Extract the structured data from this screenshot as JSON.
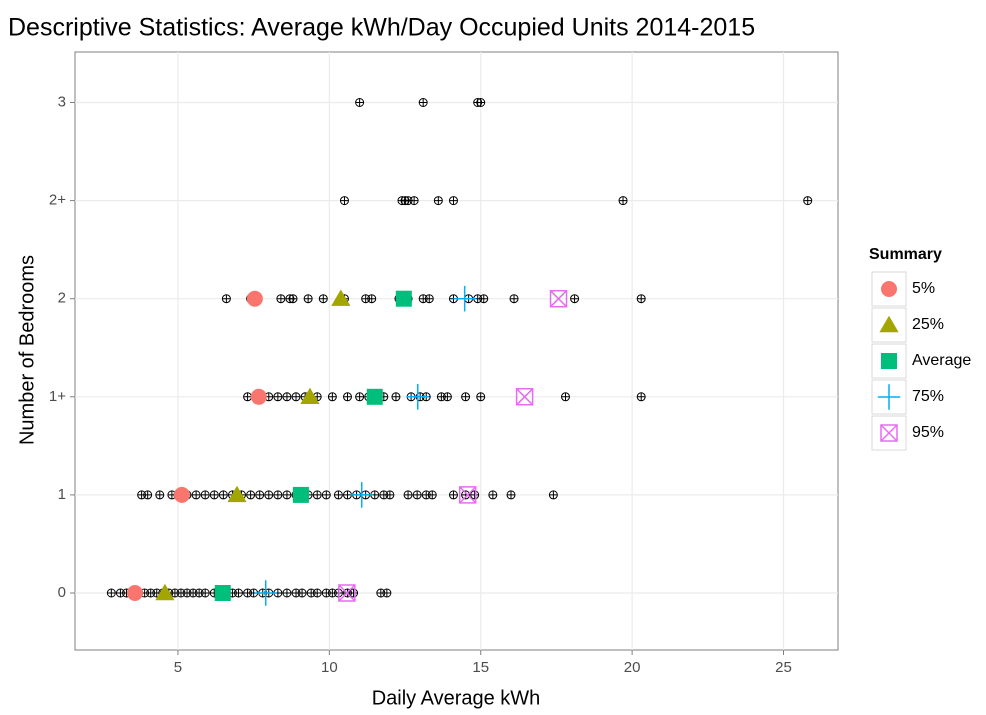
{
  "chart_data": {
    "type": "scatter",
    "title": "Descriptive Statistics: Average kWh/Day Occupied Units 2014-2015",
    "x_label": "Daily Average kWh",
    "y_label": "Number of Bedrooms",
    "categories": [
      "0",
      "1",
      "1+",
      "2",
      "2+",
      "3"
    ],
    "xlim": [
      1.6,
      26.8
    ],
    "xticks": [
      5,
      10,
      15,
      20,
      25
    ],
    "grid": true,
    "observations": [
      [
        2.8,
        3.1,
        3.3,
        3.5,
        3.7,
        3.9,
        4.1,
        4.3,
        4.5,
        4.7,
        4.9,
        5.1,
        5.3,
        5.5,
        5.7,
        5.9,
        6.2,
        6.5,
        6.8,
        7.0,
        7.3,
        7.5,
        7.8,
        8.0,
        8.3,
        8.6,
        8.9,
        9.1,
        9.4,
        9.6,
        9.9,
        10.1,
        10.3,
        10.6,
        10.8,
        11.7,
        11.9
      ],
      [
        3.8,
        4.0,
        4.4,
        4.8,
        5.0,
        5.3,
        5.6,
        5.9,
        6.2,
        6.5,
        6.8,
        7.1,
        7.4,
        7.7,
        8.0,
        8.3,
        8.6,
        8.9,
        9.3,
        9.6,
        9.9,
        10.3,
        10.6,
        10.9,
        11.2,
        11.5,
        11.8,
        12.0,
        12.6,
        12.9,
        13.2,
        13.4,
        14.1,
        14.5,
        14.8,
        15.4,
        16.0,
        17.4
      ],
      [
        7.3,
        7.6,
        8.0,
        8.3,
        8.6,
        8.9,
        9.2,
        9.6,
        10.1,
        10.6,
        11.0,
        11.3,
        11.8,
        12.2,
        12.7,
        13.0,
        13.2,
        13.7,
        13.9,
        14.5,
        15.0,
        17.8,
        20.3
      ],
      [
        6.6,
        7.4,
        8.4,
        8.7,
        8.8,
        9.3,
        9.8,
        10.5,
        11.2,
        11.4,
        12.3,
        12.6,
        13.1,
        13.3,
        14.1,
        14.6,
        14.9,
        15.1,
        16.1,
        18.1,
        20.3
      ],
      [
        10.5,
        12.4,
        12.5,
        12.6,
        12.8,
        13.6,
        14.1,
        19.7,
        25.8
      ],
      [
        11.0,
        13.1,
        14.9,
        15.0
      ]
    ],
    "legend_title": "Summary",
    "legend_position": "right",
    "series": [
      {
        "name": "5%",
        "color": "#f8766d",
        "shape": "circle",
        "values": [
          3.58,
          5.13,
          7.67,
          7.54,
          null,
          null
        ]
      },
      {
        "name": "25%",
        "color": "#a3a500",
        "shape": "triangle",
        "values": [
          4.57,
          6.95,
          9.36,
          10.38,
          null,
          null
        ]
      },
      {
        "name": "Average",
        "color": "#00bf7d",
        "shape": "square",
        "values": [
          6.48,
          9.06,
          11.5,
          12.46,
          null,
          null
        ]
      },
      {
        "name": "75%",
        "color": "#00b0f6",
        "shape": "plus",
        "values": [
          7.9,
          11.07,
          12.92,
          14.47,
          null,
          null
        ]
      },
      {
        "name": "95%",
        "color": "#e76bf3",
        "shape": "boxcross",
        "values": [
          10.58,
          14.57,
          16.45,
          17.57,
          null,
          null
        ]
      }
    ]
  }
}
